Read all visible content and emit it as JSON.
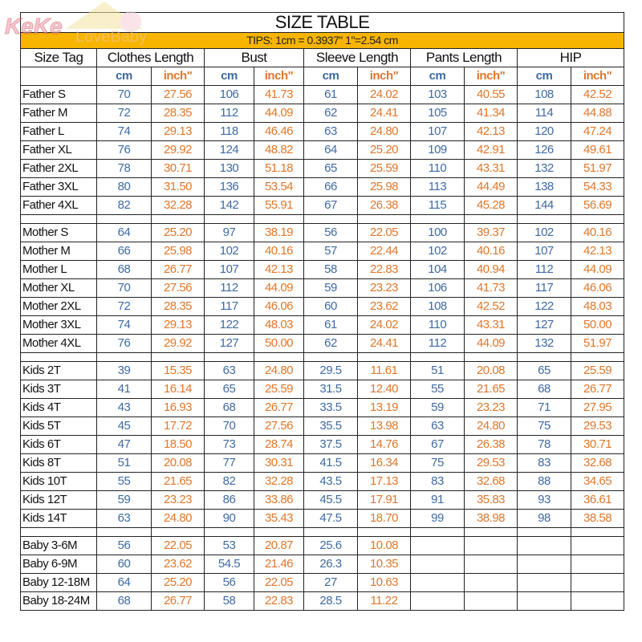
{
  "logo": {
    "text_primary": "KeKe",
    "text_secondary": "LoveBaby"
  },
  "title": "SIZE TABLE",
  "tips": "TIPS: 1cm = 0.3937\"   1\"=2.54 cm",
  "colors": {
    "cm": "#3f6aa3",
    "inch": "#e0772a",
    "tips_band": "#f7b500"
  },
  "headers": [
    "Size Tag",
    "Clothes Length",
    "Bust",
    "Sleeve Length",
    "Pants Length",
    "HIP"
  ],
  "units": {
    "cm": "cm",
    "inch": "inch\""
  },
  "groups": [
    {
      "rows": [
        {
          "tag": "Father S",
          "values": [
            "70",
            "27.56",
            "106",
            "41.73",
            "61",
            "24.02",
            "103",
            "40.55",
            "108",
            "42.52"
          ]
        },
        {
          "tag": "Father M",
          "values": [
            "72",
            "28.35",
            "112",
            "44.09",
            "62",
            "24.41",
            "105",
            "41.34",
            "114",
            "44.88"
          ]
        },
        {
          "tag": "Father L",
          "values": [
            "74",
            "29.13",
            "118",
            "46.46",
            "63",
            "24.80",
            "107",
            "42.13",
            "120",
            "47.24"
          ]
        },
        {
          "tag": "Father XL",
          "values": [
            "76",
            "29.92",
            "124",
            "48.82",
            "64",
            "25.20",
            "109",
            "42.91",
            "126",
            "49.61"
          ]
        },
        {
          "tag": "Father 2XL",
          "values": [
            "78",
            "30.71",
            "130",
            "51.18",
            "65",
            "25.59",
            "110",
            "43.31",
            "132",
            "51.97"
          ]
        },
        {
          "tag": "Father 3XL",
          "values": [
            "80",
            "31.50",
            "136",
            "53.54",
            "66",
            "25.98",
            "113",
            "44.49",
            "138",
            "54.33"
          ]
        },
        {
          "tag": "Father 4XL",
          "values": [
            "82",
            "32.28",
            "142",
            "55.91",
            "67",
            "26.38",
            "115",
            "45.28",
            "144",
            "56.69"
          ]
        }
      ]
    },
    {
      "rows": [
        {
          "tag": "Mother S",
          "values": [
            "64",
            "25.20",
            "97",
            "38.19",
            "56",
            "22.05",
            "100",
            "39.37",
            "102",
            "40.16"
          ]
        },
        {
          "tag": "Mother M",
          "values": [
            "66",
            "25.98",
            "102",
            "40.16",
            "57",
            "22.44",
            "102",
            "40.16",
            "107",
            "42.13"
          ]
        },
        {
          "tag": "Mother L",
          "values": [
            "68",
            "26.77",
            "107",
            "42.13",
            "58",
            "22.83",
            "104",
            "40.94",
            "112",
            "44.09"
          ]
        },
        {
          "tag": "Mother XL",
          "values": [
            "70",
            "27.56",
            "112",
            "44.09",
            "59",
            "23.23",
            "106",
            "41.73",
            "117",
            "46.06"
          ]
        },
        {
          "tag": "Mother 2XL",
          "values": [
            "72",
            "28.35",
            "117",
            "46.06",
            "60",
            "23.62",
            "108",
            "42.52",
            "122",
            "48.03"
          ]
        },
        {
          "tag": "Mother 3XL",
          "values": [
            "74",
            "29.13",
            "122",
            "48.03",
            "61",
            "24.02",
            "110",
            "43.31",
            "127",
            "50.00"
          ]
        },
        {
          "tag": "Mother 4XL",
          "values": [
            "76",
            "29.92",
            "127",
            "50.00",
            "62",
            "24.41",
            "112",
            "44.09",
            "132",
            "51.97"
          ]
        }
      ]
    },
    {
      "rows": [
        {
          "tag": "Kids 2T",
          "values": [
            "39",
            "15.35",
            "63",
            "24.80",
            "29.5",
            "11.61",
            "51",
            "20.08",
            "65",
            "25.59"
          ]
        },
        {
          "tag": "Kids 3T",
          "values": [
            "41",
            "16.14",
            "65",
            "25.59",
            "31.5",
            "12.40",
            "55",
            "21.65",
            "68",
            "26.77"
          ]
        },
        {
          "tag": "Kids 4T",
          "values": [
            "43",
            "16.93",
            "68",
            "26.77",
            "33.5",
            "13.19",
            "59",
            "23.23",
            "71",
            "27.95"
          ]
        },
        {
          "tag": "Kids 5T",
          "values": [
            "45",
            "17.72",
            "70",
            "27.56",
            "35.5",
            "13.98",
            "63",
            "24.80",
            "75",
            "29.53"
          ]
        },
        {
          "tag": "Kids 6T",
          "values": [
            "47",
            "18.50",
            "73",
            "28.74",
            "37.5",
            "14.76",
            "67",
            "26.38",
            "78",
            "30.71"
          ]
        },
        {
          "tag": "Kids 8T",
          "values": [
            "51",
            "20.08",
            "77",
            "30.31",
            "41.5",
            "16.34",
            "75",
            "29.53",
            "83",
            "32.68"
          ]
        },
        {
          "tag": "Kids 10T",
          "values": [
            "55",
            "21.65",
            "82",
            "32.28",
            "43.5",
            "17.13",
            "83",
            "32.68",
            "88",
            "34.65"
          ]
        },
        {
          "tag": "Kids 12T",
          "values": [
            "59",
            "23.23",
            "86",
            "33.86",
            "45.5",
            "17.91",
            "91",
            "35.83",
            "93",
            "36.61"
          ]
        },
        {
          "tag": "Kids 14T",
          "values": [
            "63",
            "24.80",
            "90",
            "35.43",
            "47.5",
            "18.70",
            "99",
            "38.98",
            "98",
            "38.58"
          ]
        }
      ]
    },
    {
      "rows": [
        {
          "tag": "Baby 3-6M",
          "values": [
            "56",
            "22.05",
            "53",
            "20.87",
            "25.6",
            "10.08",
            "",
            "",
            "",
            ""
          ]
        },
        {
          "tag": "Baby 6-9M",
          "values": [
            "60",
            "23.62",
            "54.5",
            "21.46",
            "26.3",
            "10.35",
            "",
            "",
            "",
            ""
          ]
        },
        {
          "tag": "Baby 12-18M",
          "values": [
            "64",
            "25.20",
            "56",
            "22.05",
            "27",
            "10.63",
            "",
            "",
            "",
            ""
          ]
        },
        {
          "tag": "Baby 18-24M",
          "values": [
            "68",
            "26.77",
            "58",
            "22.83",
            "28.5",
            "11.22",
            "",
            "",
            "",
            ""
          ]
        }
      ]
    }
  ]
}
